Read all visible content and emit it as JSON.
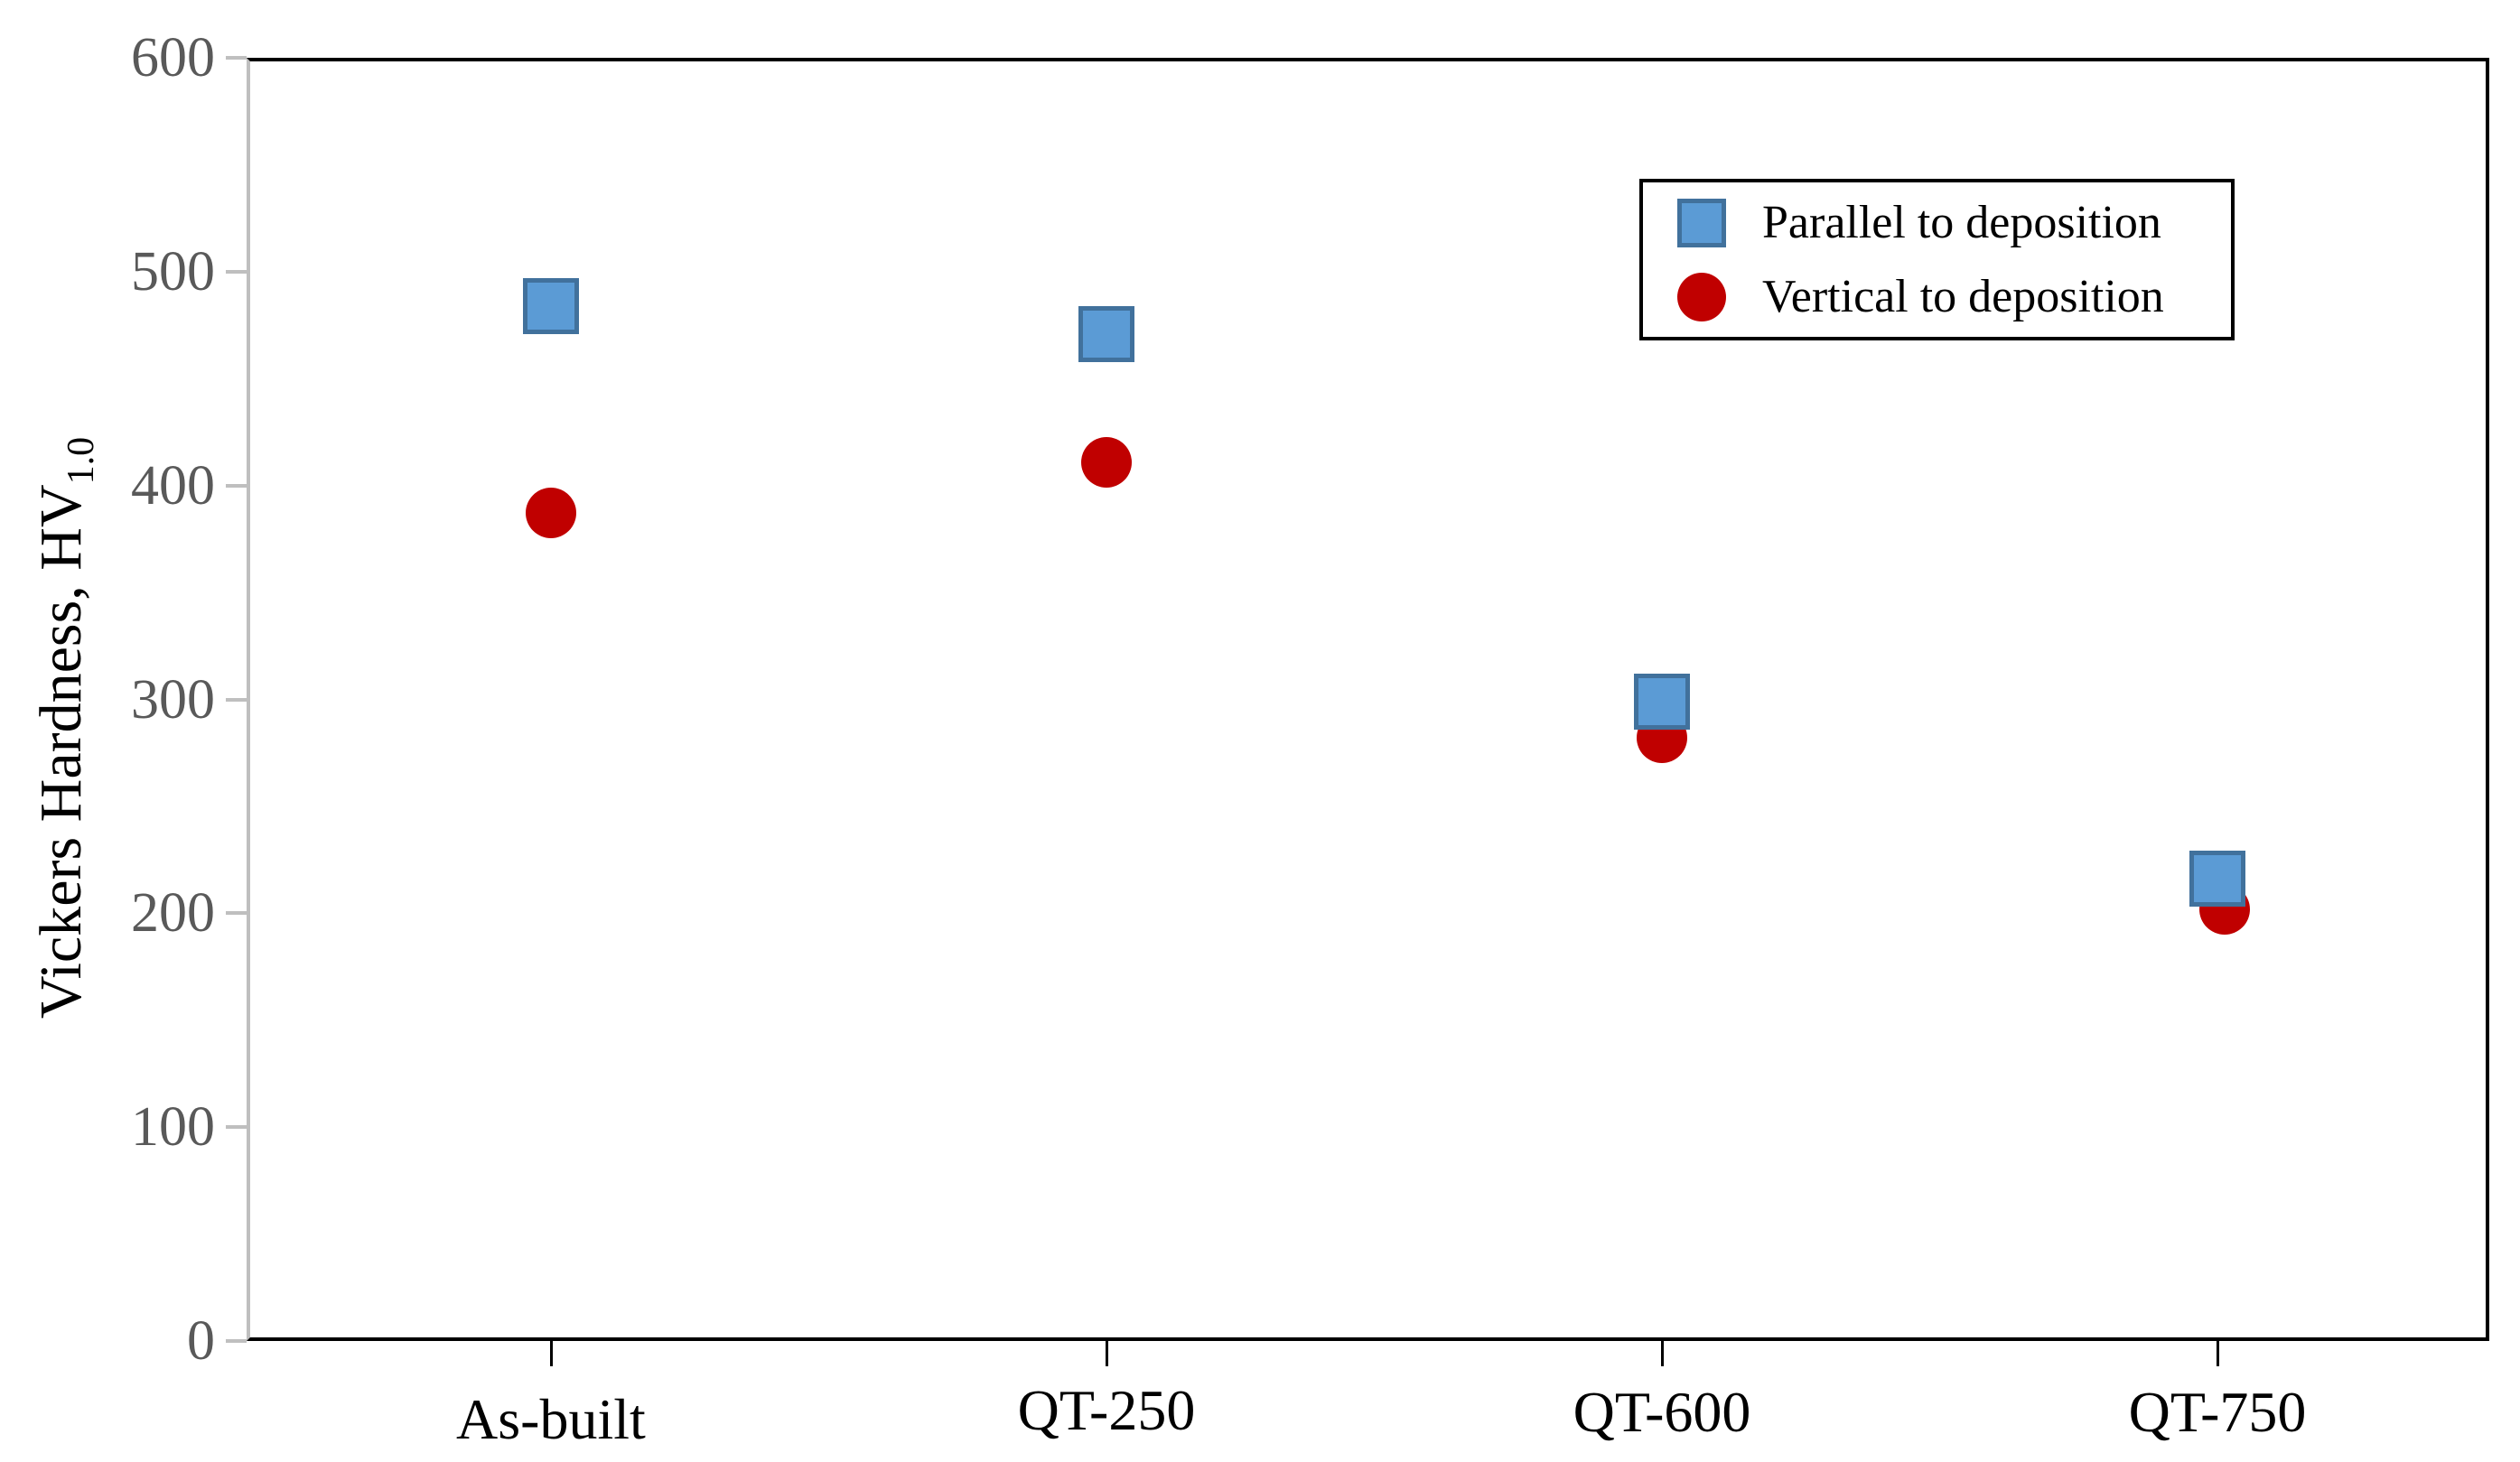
{
  "chart_data": {
    "type": "scatter",
    "title": "",
    "categories": [
      "As-built",
      "QT-250",
      "QT-600",
      "QT-750"
    ],
    "series": [
      {
        "name": "Parallel to deposition",
        "marker": "square",
        "fill": "#5B9BD5",
        "stroke": "#41719C",
        "values": [
          484,
          471,
          299,
          216
        ]
      },
      {
        "name": "Vertical to deposition",
        "marker": "circle",
        "fill": "#C00000",
        "stroke": "#C00000",
        "values": [
          387,
          411,
          282,
          202
        ]
      }
    ],
    "xlabel": "",
    "ylabel": "Vickers Hardness, HV",
    "ylabel_subscript": "1.0",
    "ylim": [
      0,
      600
    ],
    "yticks": [
      0,
      100,
      200,
      300,
      400,
      500,
      600
    ],
    "ytick_labels": [
      "0",
      "100",
      "200",
      "300",
      "400",
      "500",
      "600"
    ],
    "grid": false,
    "legend_position": "top-right"
  },
  "colors": {
    "background": "#FFFFFF",
    "frame": "#000000",
    "y_axis_line": "#BFBFBF",
    "y_tick_label": "#595959",
    "x_tick_label": "#000000",
    "parallel_fill": "#5B9BD5",
    "parallel_border": "#41719C",
    "vertical_fill": "#C00000"
  }
}
